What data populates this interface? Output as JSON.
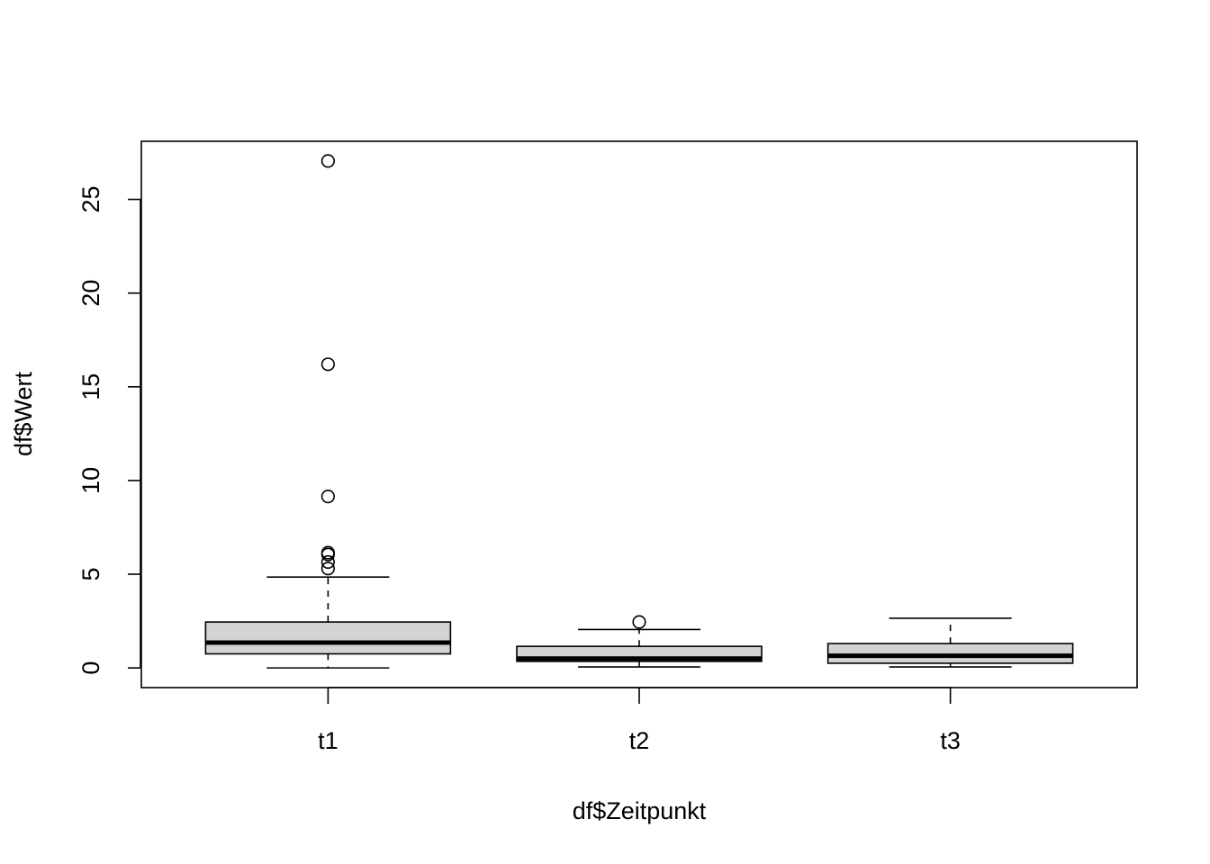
{
  "chart_data": {
    "type": "boxplot",
    "xlabel": "df$Zeitpunkt",
    "ylabel": "df$Wert",
    "ylim": [
      -1.05,
      28.1
    ],
    "yticks": [
      0,
      5,
      10,
      15,
      20,
      25
    ],
    "ytick_labels": [
      "0",
      "5",
      "10",
      "15",
      "20",
      "25"
    ],
    "categories": [
      "t1",
      "t2",
      "t3"
    ],
    "box_fill": "#d3d3d3",
    "line_color": "#000000",
    "grid": false,
    "legend": "none",
    "boxes": [
      {
        "category": "t1",
        "whisker_low": 0.0,
        "q1": 0.75,
        "median": 1.35,
        "q3": 2.45,
        "whisker_high": 4.85,
        "outliers": [
          27.05,
          16.2,
          9.15,
          6.15,
          6.05,
          5.65,
          5.3
        ]
      },
      {
        "category": "t2",
        "whisker_low": 0.05,
        "q1": 0.35,
        "median": 0.5,
        "q3": 1.15,
        "whisker_high": 2.05,
        "outliers": [
          2.45
        ]
      },
      {
        "category": "t3",
        "whisker_low": 0.05,
        "q1": 0.25,
        "median": 0.65,
        "q3": 1.3,
        "whisker_high": 2.65,
        "outliers": []
      }
    ]
  }
}
